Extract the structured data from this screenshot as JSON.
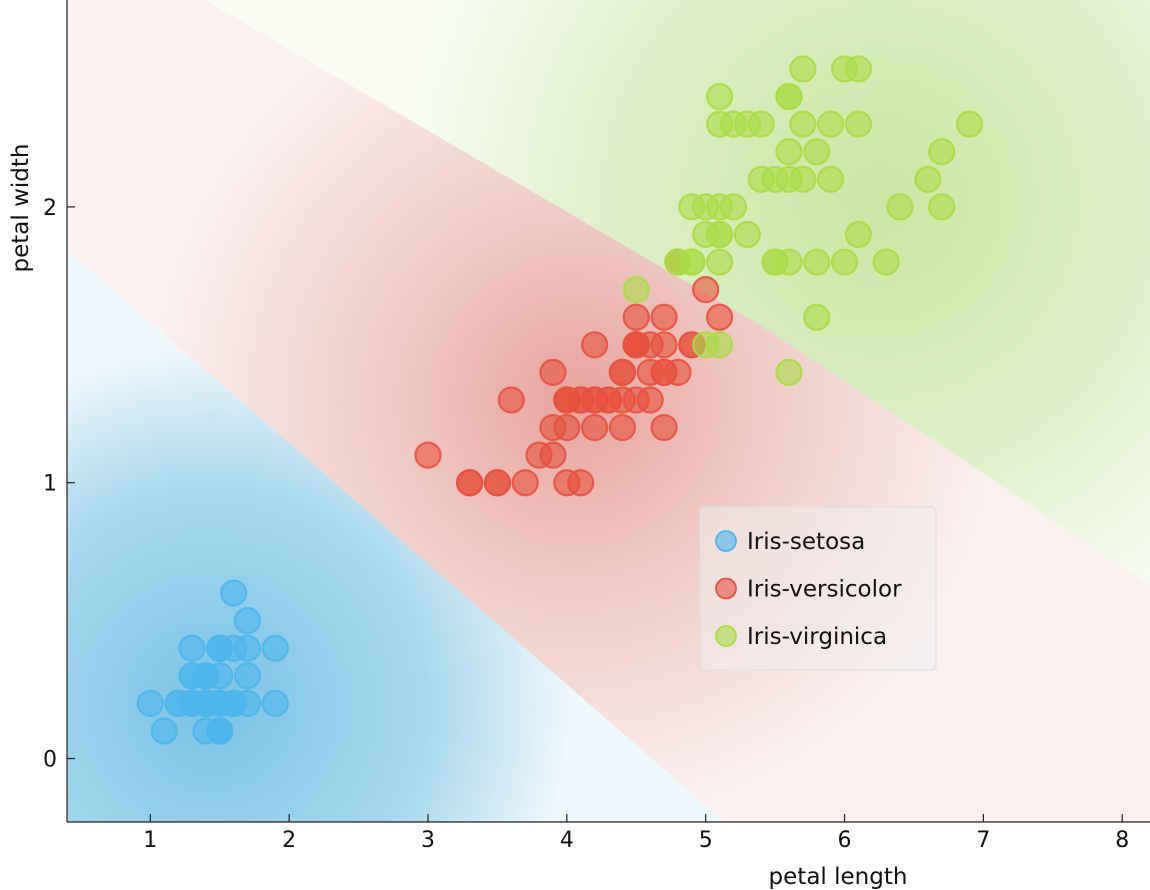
{
  "chart_data": {
    "type": "scatter",
    "title": "",
    "xlabel": "petal length",
    "ylabel": "petal width",
    "xlim": [
      0.4,
      8.2
    ],
    "ylim": [
      -0.23,
      2.75
    ],
    "x_ticks": [
      1,
      2,
      3,
      4,
      5,
      6,
      7,
      8
    ],
    "y_ticks": [
      0,
      1,
      2
    ],
    "legend_position": "center-right",
    "background": "classification probability regions (decision boundary)",
    "series": [
      {
        "name": "Iris-setosa",
        "color": "#4db6ec",
        "points": [
          [
            1.4,
            0.2
          ],
          [
            1.4,
            0.2
          ],
          [
            1.3,
            0.2
          ],
          [
            1.5,
            0.2
          ],
          [
            1.4,
            0.2
          ],
          [
            1.7,
            0.4
          ],
          [
            1.4,
            0.3
          ],
          [
            1.5,
            0.2
          ],
          [
            1.4,
            0.2
          ],
          [
            1.5,
            0.1
          ],
          [
            1.5,
            0.2
          ],
          [
            1.6,
            0.2
          ],
          [
            1.4,
            0.1
          ],
          [
            1.1,
            0.1
          ],
          [
            1.2,
            0.2
          ],
          [
            1.5,
            0.4
          ],
          [
            1.3,
            0.4
          ],
          [
            1.4,
            0.3
          ],
          [
            1.7,
            0.3
          ],
          [
            1.5,
            0.3
          ],
          [
            1.7,
            0.2
          ],
          [
            1.5,
            0.4
          ],
          [
            1.0,
            0.2
          ],
          [
            1.7,
            0.5
          ],
          [
            1.9,
            0.2
          ],
          [
            1.6,
            0.2
          ],
          [
            1.6,
            0.4
          ],
          [
            1.5,
            0.2
          ],
          [
            1.4,
            0.2
          ],
          [
            1.6,
            0.2
          ],
          [
            1.6,
            0.2
          ],
          [
            1.5,
            0.4
          ],
          [
            1.5,
            0.1
          ],
          [
            1.4,
            0.2
          ],
          [
            1.5,
            0.1
          ],
          [
            1.2,
            0.2
          ],
          [
            1.3,
            0.2
          ],
          [
            1.5,
            0.1
          ],
          [
            1.3,
            0.2
          ],
          [
            1.5,
            0.2
          ],
          [
            1.3,
            0.3
          ],
          [
            1.3,
            0.3
          ],
          [
            1.3,
            0.2
          ],
          [
            1.6,
            0.6
          ],
          [
            1.9,
            0.4
          ],
          [
            1.4,
            0.3
          ],
          [
            1.6,
            0.2
          ],
          [
            1.4,
            0.2
          ],
          [
            1.5,
            0.2
          ],
          [
            1.4,
            0.2
          ]
        ]
      },
      {
        "name": "Iris-versicolor",
        "color": "#e8513f",
        "points": [
          [
            4.7,
            1.4
          ],
          [
            4.5,
            1.5
          ],
          [
            4.9,
            1.5
          ],
          [
            4.0,
            1.3
          ],
          [
            4.6,
            1.5
          ],
          [
            4.5,
            1.3
          ],
          [
            4.7,
            1.6
          ],
          [
            3.3,
            1.0
          ],
          [
            4.6,
            1.3
          ],
          [
            3.9,
            1.4
          ],
          [
            3.5,
            1.0
          ],
          [
            4.2,
            1.5
          ],
          [
            4.0,
            1.0
          ],
          [
            4.7,
            1.4
          ],
          [
            3.6,
            1.3
          ],
          [
            4.4,
            1.4
          ],
          [
            4.5,
            1.5
          ],
          [
            4.1,
            1.0
          ],
          [
            4.5,
            1.5
          ],
          [
            3.9,
            1.1
          ],
          [
            4.8,
            1.8
          ],
          [
            4.0,
            1.3
          ],
          [
            4.9,
            1.5
          ],
          [
            4.7,
            1.2
          ],
          [
            4.3,
            1.3
          ],
          [
            4.4,
            1.4
          ],
          [
            4.8,
            1.4
          ],
          [
            5.0,
            1.7
          ],
          [
            4.5,
            1.5
          ],
          [
            3.5,
            1.0
          ],
          [
            3.8,
            1.1
          ],
          [
            3.7,
            1.0
          ],
          [
            3.9,
            1.2
          ],
          [
            5.1,
            1.6
          ],
          [
            4.5,
            1.5
          ],
          [
            4.5,
            1.6
          ],
          [
            4.7,
            1.5
          ],
          [
            4.4,
            1.3
          ],
          [
            4.1,
            1.3
          ],
          [
            4.0,
            1.3
          ],
          [
            4.4,
            1.2
          ],
          [
            4.6,
            1.4
          ],
          [
            4.0,
            1.2
          ],
          [
            3.3,
            1.0
          ],
          [
            4.2,
            1.3
          ],
          [
            4.2,
            1.2
          ],
          [
            4.2,
            1.3
          ],
          [
            4.3,
            1.3
          ],
          [
            3.0,
            1.1
          ],
          [
            4.1,
            1.3
          ]
        ]
      },
      {
        "name": "Iris-virginica",
        "color": "#a8dc44",
        "points": [
          [
            6.0,
            2.5
          ],
          [
            5.1,
            1.9
          ],
          [
            5.9,
            2.1
          ],
          [
            5.6,
            1.8
          ],
          [
            5.8,
            2.2
          ],
          [
            6.6,
            2.1
          ],
          [
            4.5,
            1.7
          ],
          [
            6.3,
            1.8
          ],
          [
            5.8,
            1.8
          ],
          [
            6.1,
            2.5
          ],
          [
            5.1,
            2.0
          ],
          [
            5.3,
            1.9
          ],
          [
            5.5,
            2.1
          ],
          [
            5.0,
            2.0
          ],
          [
            5.1,
            2.4
          ],
          [
            5.3,
            2.3
          ],
          [
            5.5,
            1.8
          ],
          [
            6.7,
            2.2
          ],
          [
            6.9,
            2.3
          ],
          [
            5.0,
            1.5
          ],
          [
            5.7,
            2.3
          ],
          [
            4.9,
            2.0
          ],
          [
            6.7,
            2.0
          ],
          [
            4.9,
            1.8
          ],
          [
            5.7,
            2.1
          ],
          [
            6.0,
            1.8
          ],
          [
            4.8,
            1.8
          ],
          [
            4.9,
            1.8
          ],
          [
            5.6,
            2.1
          ],
          [
            5.8,
            1.6
          ],
          [
            6.1,
            1.9
          ],
          [
            6.4,
            2.0
          ],
          [
            5.6,
            2.2
          ],
          [
            5.1,
            1.5
          ],
          [
            5.6,
            1.4
          ],
          [
            6.1,
            2.3
          ],
          [
            5.6,
            2.4
          ],
          [
            5.5,
            1.8
          ],
          [
            4.8,
            1.8
          ],
          [
            5.4,
            2.1
          ],
          [
            5.6,
            2.4
          ],
          [
            5.1,
            2.3
          ],
          [
            5.1,
            1.9
          ],
          [
            5.9,
            2.3
          ],
          [
            5.7,
            2.5
          ],
          [
            5.2,
            2.3
          ],
          [
            5.0,
            1.9
          ],
          [
            5.2,
            2.0
          ],
          [
            5.4,
            2.3
          ],
          [
            5.1,
            1.8
          ]
        ]
      }
    ]
  }
}
